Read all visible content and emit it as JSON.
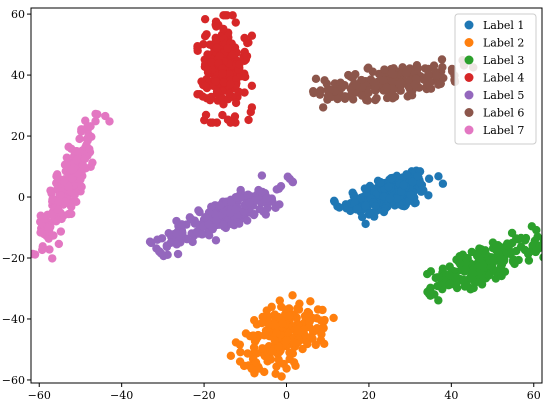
{
  "chart_data": {
    "type": "scatter",
    "title": "",
    "xlabel": "",
    "ylabel": "",
    "xlim": [
      -62,
      62
    ],
    "ylim": [
      -61,
      62
    ],
    "xticks": [
      -60,
      -40,
      -20,
      0,
      20,
      40,
      60
    ],
    "yticks": [
      -60,
      -40,
      -20,
      0,
      20,
      40,
      60
    ],
    "grid": false,
    "legend_position": "upper-right",
    "series": [
      {
        "name": "Label 1",
        "color": "#1f77b4",
        "cluster": {
          "cx": 25,
          "cy": 1,
          "sx": 6.0,
          "sy": 3.0,
          "angle_deg": 24,
          "count": 210
        }
      },
      {
        "name": "Label 2",
        "color": "#ff7f0e",
        "cluster": {
          "cx": -1,
          "cy": -46,
          "sx": 6.0,
          "sy": 4.0,
          "angle_deg": 46,
          "count": 210
        }
      },
      {
        "name": "Label 3",
        "color": "#2ca02c",
        "cluster": {
          "cx": 48,
          "cy": -22,
          "sx": 7.5,
          "sy": 2.5,
          "angle_deg": 30,
          "count": 210
        }
      },
      {
        "name": "Label 4",
        "color": "#d62728",
        "cluster": {
          "cx": -15,
          "cy": 42,
          "sx": 8.0,
          "sy": 3.0,
          "angle_deg": 90,
          "count": 210
        }
      },
      {
        "name": "Label 5",
        "color": "#9467bd",
        "cluster": {
          "cx": -15,
          "cy": -6,
          "sx": 9.0,
          "sy": 2.5,
          "angle_deg": 35,
          "count": 210
        }
      },
      {
        "name": "Label 6",
        "color": "#8c564b",
        "cluster": {
          "cx": 26,
          "cy": 38,
          "sx": 9.0,
          "sy": 2.5,
          "angle_deg": 10,
          "count": 210
        }
      },
      {
        "name": "Label 7",
        "color": "#e377c2",
        "cluster": {
          "cx": -53,
          "cy": 4,
          "sx": 11.0,
          "sy": 1.6,
          "angle_deg": 73,
          "count": 210
        }
      }
    ]
  }
}
